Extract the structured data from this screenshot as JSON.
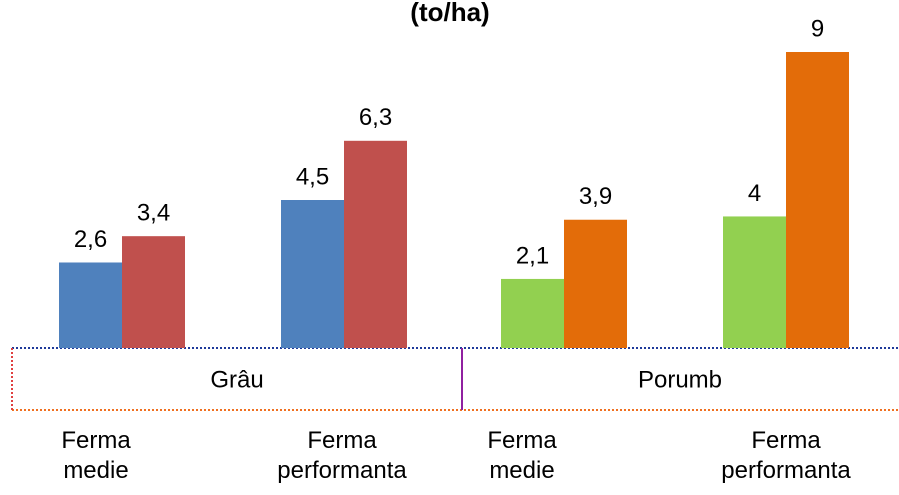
{
  "chart_data": {
    "type": "bar",
    "title": "(to/ha)",
    "categories": [
      "Ferma medie",
      "Ferma performanta",
      "Ferma medie",
      "Ferma performanta"
    ],
    "groups": [
      "Grâu",
      "Porumb"
    ],
    "series": [
      {
        "colors": [
          "#4f81bd",
          "#4f81bd",
          "#92d050",
          "#92d050"
        ],
        "values": [
          2.6,
          4.5,
          2.1,
          4
        ],
        "value_labels": [
          "2,6",
          "4,5",
          "2,1",
          "4"
        ]
      },
      {
        "colors": [
          "#c0504d",
          "#c0504d",
          "#e36c09",
          "#e36c09"
        ],
        "values": [
          3.4,
          6.3,
          3.9,
          9
        ],
        "value_labels": [
          "3,4",
          "6,3",
          "3,9",
          "9"
        ]
      }
    ],
    "ylim": [
      0,
      9
    ]
  }
}
